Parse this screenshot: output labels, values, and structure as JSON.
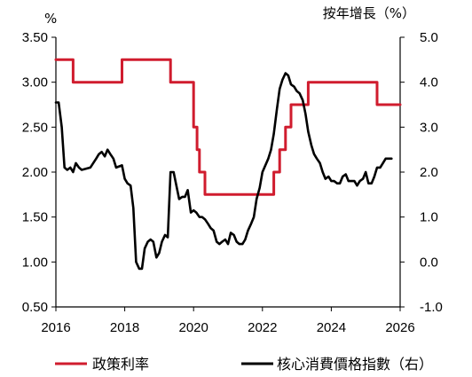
{
  "chart_data": {
    "type": "line",
    "units": {
      "left": "%",
      "right": "按年增長（%）"
    },
    "x_range": [
      2016,
      2026
    ],
    "x_ticks": [
      "2016",
      "2018",
      "2020",
      "2022",
      "2024",
      "2026"
    ],
    "left_axis": {
      "ylim": [
        0.5,
        3.5
      ],
      "ticks": [
        "0.50",
        "1.00",
        "1.50",
        "2.00",
        "2.50",
        "3.00",
        "3.50"
      ]
    },
    "right_axis": {
      "ylim": [
        -1.0,
        5.0
      ],
      "ticks": [
        "-1.0",
        "0.0",
        "1.0",
        "2.0",
        "3.0",
        "4.0",
        "5.0"
      ]
    },
    "grid": false,
    "legend_position": "bottom",
    "series": [
      {
        "name": "政策利率",
        "axis": "left",
        "color": "#d01c2e",
        "step": true,
        "points": [
          [
            2016.0,
            3.25
          ],
          [
            2016.5,
            3.0
          ],
          [
            2017.0,
            3.0
          ],
          [
            2017.5,
            3.0
          ],
          [
            2017.92,
            3.25
          ],
          [
            2018.5,
            3.25
          ],
          [
            2019.0,
            3.25
          ],
          [
            2019.33,
            3.0
          ],
          [
            2019.75,
            3.0
          ],
          [
            2020.0,
            2.5
          ],
          [
            2020.1,
            2.25
          ],
          [
            2020.17,
            2.0
          ],
          [
            2020.33,
            1.75
          ],
          [
            2021.0,
            1.75
          ],
          [
            2021.5,
            1.75
          ],
          [
            2022.25,
            1.75
          ],
          [
            2022.33,
            2.0
          ],
          [
            2022.5,
            2.25
          ],
          [
            2022.67,
            2.5
          ],
          [
            2022.83,
            2.75
          ],
          [
            2023.0,
            2.75
          ],
          [
            2023.33,
            3.0
          ],
          [
            2024.0,
            3.0
          ],
          [
            2025.0,
            3.0
          ],
          [
            2025.33,
            2.75
          ],
          [
            2026.0,
            2.75
          ]
        ]
      },
      {
        "name": "核心消費價格指數（右）",
        "axis": "right",
        "color": "#000000",
        "step": false,
        "points": [
          [
            2016.0,
            3.55
          ],
          [
            2016.08,
            3.55
          ],
          [
            2016.17,
            3.0
          ],
          [
            2016.25,
            2.1
          ],
          [
            2016.33,
            2.05
          ],
          [
            2016.42,
            2.1
          ],
          [
            2016.5,
            2.0
          ],
          [
            2016.58,
            2.2
          ],
          [
            2016.67,
            2.1
          ],
          [
            2016.75,
            2.05
          ],
          [
            2017.0,
            2.1
          ],
          [
            2017.17,
            2.3
          ],
          [
            2017.25,
            2.4
          ],
          [
            2017.33,
            2.45
          ],
          [
            2017.42,
            2.35
          ],
          [
            2017.5,
            2.5
          ],
          [
            2017.58,
            2.4
          ],
          [
            2017.67,
            2.3
          ],
          [
            2017.75,
            2.1
          ],
          [
            2017.92,
            2.15
          ],
          [
            2018.0,
            1.85
          ],
          [
            2018.08,
            1.75
          ],
          [
            2018.17,
            1.7
          ],
          [
            2018.25,
            1.2
          ],
          [
            2018.33,
            0.0
          ],
          [
            2018.42,
            -0.15
          ],
          [
            2018.5,
            -0.15
          ],
          [
            2018.58,
            0.3
          ],
          [
            2018.67,
            0.45
          ],
          [
            2018.75,
            0.5
          ],
          [
            2018.83,
            0.45
          ],
          [
            2018.92,
            0.1
          ],
          [
            2019.0,
            0.2
          ],
          [
            2019.08,
            0.45
          ],
          [
            2019.17,
            0.6
          ],
          [
            2019.25,
            0.55
          ],
          [
            2019.33,
            2.0
          ],
          [
            2019.42,
            2.0
          ],
          [
            2019.5,
            1.7
          ],
          [
            2019.58,
            1.4
          ],
          [
            2019.67,
            1.45
          ],
          [
            2019.75,
            1.45
          ],
          [
            2019.83,
            1.6
          ],
          [
            2019.92,
            1.1
          ],
          [
            2020.0,
            1.15
          ],
          [
            2020.08,
            1.1
          ],
          [
            2020.17,
            1.0
          ],
          [
            2020.25,
            1.0
          ],
          [
            2020.33,
            0.95
          ],
          [
            2020.42,
            0.85
          ],
          [
            2020.5,
            0.75
          ],
          [
            2020.58,
            0.7
          ],
          [
            2020.67,
            0.45
          ],
          [
            2020.75,
            0.4
          ],
          [
            2020.83,
            0.45
          ],
          [
            2020.92,
            0.5
          ],
          [
            2021.0,
            0.4
          ],
          [
            2021.08,
            0.65
          ],
          [
            2021.17,
            0.6
          ],
          [
            2021.25,
            0.45
          ],
          [
            2021.33,
            0.4
          ],
          [
            2021.42,
            0.4
          ],
          [
            2021.5,
            0.5
          ],
          [
            2021.58,
            0.7
          ],
          [
            2021.67,
            0.85
          ],
          [
            2021.75,
            1.0
          ],
          [
            2021.83,
            1.4
          ],
          [
            2021.92,
            1.65
          ],
          [
            2022.0,
            2.0
          ],
          [
            2022.17,
            2.3
          ],
          [
            2022.25,
            2.5
          ],
          [
            2022.33,
            2.85
          ],
          [
            2022.42,
            3.4
          ],
          [
            2022.5,
            3.85
          ],
          [
            2022.58,
            4.05
          ],
          [
            2022.67,
            4.2
          ],
          [
            2022.75,
            4.15
          ],
          [
            2022.83,
            3.95
          ],
          [
            2022.92,
            3.9
          ],
          [
            2023.0,
            3.8
          ],
          [
            2023.08,
            3.75
          ],
          [
            2023.17,
            3.6
          ],
          [
            2023.25,
            3.3
          ],
          [
            2023.33,
            2.9
          ],
          [
            2023.42,
            2.6
          ],
          [
            2023.5,
            2.4
          ],
          [
            2023.58,
            2.3
          ],
          [
            2023.67,
            2.2
          ],
          [
            2023.75,
            2.0
          ],
          [
            2023.83,
            1.85
          ],
          [
            2023.92,
            1.9
          ],
          [
            2024.0,
            1.8
          ],
          [
            2024.08,
            1.8
          ],
          [
            2024.17,
            1.75
          ],
          [
            2024.25,
            1.75
          ],
          [
            2024.33,
            1.9
          ],
          [
            2024.42,
            1.95
          ],
          [
            2024.5,
            1.8
          ],
          [
            2024.58,
            1.8
          ],
          [
            2024.67,
            1.8
          ],
          [
            2024.75,
            1.7
          ],
          [
            2024.83,
            1.8
          ],
          [
            2024.92,
            1.85
          ],
          [
            2025.0,
            2.0
          ],
          [
            2025.08,
            1.75
          ],
          [
            2025.17,
            1.75
          ],
          [
            2025.25,
            1.9
          ],
          [
            2025.33,
            2.1
          ],
          [
            2025.42,
            2.1
          ],
          [
            2025.5,
            2.2
          ],
          [
            2025.58,
            2.3
          ],
          [
            2025.67,
            2.3
          ],
          [
            2025.75,
            2.3
          ]
        ]
      }
    ]
  }
}
